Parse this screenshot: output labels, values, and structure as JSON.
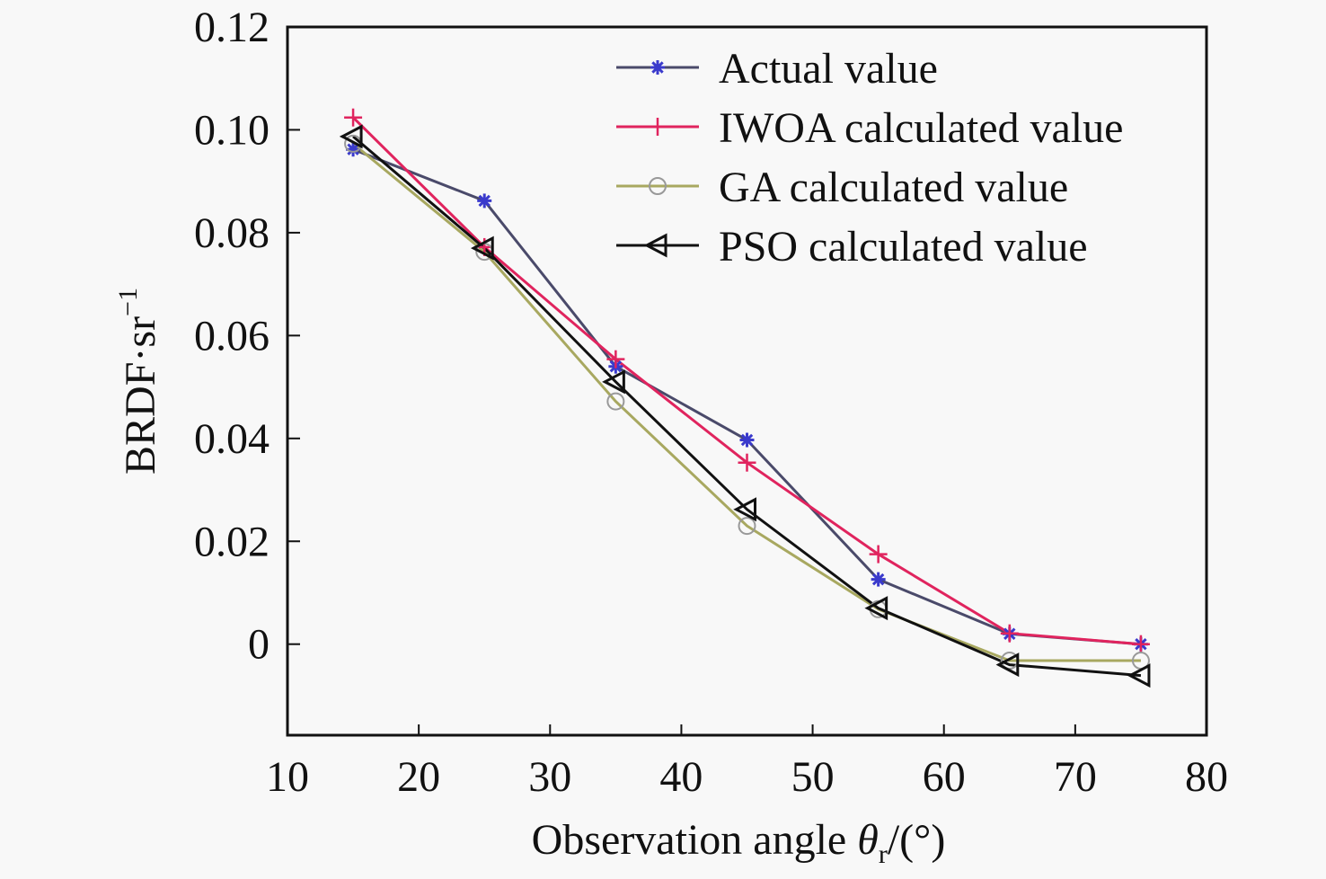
{
  "chart_data": {
    "type": "line",
    "title": "",
    "xlabel": "Observation angle θr/(°)",
    "xlabel_parts": {
      "main": "Observation angle ",
      "symbol": "θ",
      "sub": "r",
      "tail": "/(°)"
    },
    "ylabel": "BRDF·sr⁻¹",
    "ylabel_parts": {
      "main": "BRDF·sr",
      "sup": "−1"
    },
    "xlim": [
      10,
      80
    ],
    "ylim": [
      -0.0177,
      0.12
    ],
    "xticks": [
      10,
      20,
      30,
      40,
      50,
      60,
      70,
      80
    ],
    "xtick_labels": [
      "10",
      "20",
      "30",
      "40",
      "50",
      "60",
      "70",
      "80"
    ],
    "yticks": [
      0,
      0.02,
      0.04,
      0.06,
      0.08,
      0.1,
      0.12
    ],
    "ytick_labels": [
      "0",
      "0.02",
      "0.04",
      "0.06",
      "0.08",
      "0.10",
      "0.12"
    ],
    "grid": false,
    "legend_position": "top-right",
    "x": [
      15,
      25,
      35,
      45,
      55,
      65,
      75
    ],
    "series": [
      {
        "name": "Actual value",
        "marker": "asterisk",
        "line_color": "#4a4a6a",
        "marker_color": "#3a3acc",
        "values": [
          0.0962,
          0.0862,
          0.054,
          0.0397,
          0.0126,
          0.002,
          0.0
        ]
      },
      {
        "name": "IWOA calculated value",
        "marker": "plus",
        "line_color": "#e0245e",
        "marker_color": "#e0245e",
        "values": [
          0.1024,
          0.0772,
          0.0554,
          0.0353,
          0.0175,
          0.0021,
          0.0
        ]
      },
      {
        "name": "GA calculated value",
        "marker": "circle",
        "line_color": "#a8a860",
        "marker_color": "#999999",
        "values": [
          0.0973,
          0.0763,
          0.0472,
          0.023,
          0.0068,
          -0.0032,
          -0.0032
        ]
      },
      {
        "name": "PSO calculated value",
        "marker": "triangle-left",
        "line_color": "#111111",
        "marker_color": "#111111",
        "values": [
          0.0987,
          0.077,
          0.051,
          0.0262,
          0.007,
          -0.004,
          -0.0061
        ]
      }
    ]
  }
}
